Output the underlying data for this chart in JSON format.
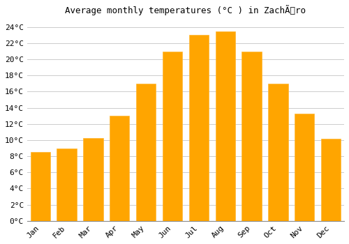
{
  "months": [
    "Jan",
    "Feb",
    "Mar",
    "Apr",
    "May",
    "Jun",
    "Jul",
    "Aug",
    "Sep",
    "Oct",
    "Nov",
    "Dec"
  ],
  "temperatures": [
    8.5,
    9.0,
    10.3,
    13.0,
    17.0,
    21.0,
    23.0,
    23.5,
    21.0,
    17.0,
    13.3,
    10.2
  ],
  "bar_color": "#FFA500",
  "bar_edge_color": "#FFB833",
  "title": "Average monthly temperatures (°C ) in ZachÃro",
  "ylim": [
    0,
    25
  ],
  "ytick_step": 2,
  "background_color": "#ffffff",
  "grid_color": "#cccccc",
  "title_fontsize": 9,
  "tick_fontsize": 8,
  "bar_width": 0.75
}
